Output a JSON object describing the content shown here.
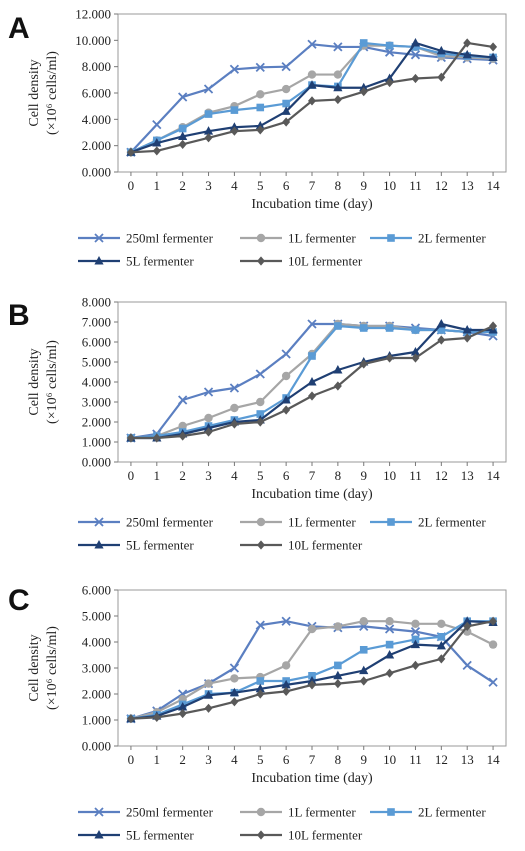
{
  "chart_data": [
    {
      "type": "line",
      "panel_label": "A",
      "xlabel": "Incubation time (day)",
      "ylabel_line1": "Cell density",
      "ylabel_line2": "(×10⁶ cells/ml)",
      "x": [
        0,
        1,
        2,
        3,
        4,
        5,
        6,
        7,
        8,
        9,
        10,
        11,
        12,
        13,
        14
      ],
      "ylim": [
        0,
        12
      ],
      "yticks": [
        0,
        2,
        4,
        6,
        8,
        10,
        12
      ],
      "ytick_labels": [
        "0.000",
        "2.000",
        "4.000",
        "6.000",
        "8.000",
        "10.000",
        "12.000"
      ],
      "grid": false,
      "series": [
        {
          "name": "250ml fermenter",
          "color": "#5b7fc1",
          "marker": "x",
          "values": [
            1.5,
            3.6,
            5.7,
            6.3,
            7.8,
            7.95,
            8.0,
            9.7,
            9.5,
            9.5,
            9.1,
            8.9,
            8.7,
            8.6,
            8.5
          ]
        },
        {
          "name": "1L fermenter",
          "color": "#a6a6a6",
          "marker": "circle",
          "values": [
            1.5,
            2.4,
            3.4,
            4.5,
            5.0,
            5.9,
            6.3,
            7.4,
            7.4,
            9.6,
            9.6,
            9.5,
            8.8,
            8.7,
            8.6
          ]
        },
        {
          "name": "2L fermenter",
          "color": "#5a9bd5",
          "marker": "square",
          "values": [
            1.5,
            2.4,
            3.3,
            4.4,
            4.7,
            4.9,
            5.2,
            6.6,
            6.5,
            9.8,
            9.6,
            9.5,
            9.0,
            8.8,
            8.7
          ]
        },
        {
          "name": "5L fermenter",
          "color": "#1f3f73",
          "marker": "triangle",
          "values": [
            1.5,
            2.2,
            2.7,
            3.1,
            3.4,
            3.5,
            4.6,
            6.6,
            6.4,
            6.4,
            7.1,
            9.8,
            9.2,
            8.9,
            8.7
          ]
        },
        {
          "name": "10L fermenter",
          "color": "#595959",
          "marker": "diamond",
          "values": [
            1.5,
            1.6,
            2.1,
            2.6,
            3.1,
            3.2,
            3.8,
            5.4,
            5.5,
            6.1,
            6.8,
            7.1,
            7.2,
            9.8,
            9.5
          ]
        }
      ]
    },
    {
      "type": "line",
      "panel_label": "B",
      "xlabel": "Incubation time (day)",
      "ylabel_line1": "Cell density",
      "ylabel_line2": "(×10⁶ cells/ml)",
      "x": [
        0,
        1,
        2,
        3,
        4,
        5,
        6,
        7,
        8,
        9,
        10,
        11,
        12,
        13,
        14
      ],
      "ylim": [
        0,
        8
      ],
      "yticks": [
        0,
        1,
        2,
        3,
        4,
        5,
        6,
        7,
        8
      ],
      "ytick_labels": [
        "0.000",
        "1.000",
        "2.000",
        "3.000",
        "4.000",
        "5.000",
        "6.000",
        "7.000",
        "8.000"
      ],
      "grid": false,
      "series": [
        {
          "name": "250ml fermenter",
          "color": "#5b7fc1",
          "marker": "x",
          "values": [
            1.2,
            1.4,
            3.1,
            3.5,
            3.7,
            4.4,
            5.4,
            6.9,
            6.9,
            6.8,
            6.8,
            6.7,
            6.6,
            6.5,
            6.3
          ]
        },
        {
          "name": "1L fermenter",
          "color": "#a6a6a6",
          "marker": "circle",
          "values": [
            1.2,
            1.3,
            1.8,
            2.2,
            2.7,
            3.0,
            4.3,
            5.4,
            6.9,
            6.8,
            6.8,
            6.6,
            6.6,
            6.5,
            6.5
          ]
        },
        {
          "name": "2L fermenter",
          "color": "#5a9bd5",
          "marker": "square",
          "values": [
            1.2,
            1.3,
            1.5,
            1.8,
            2.1,
            2.4,
            3.2,
            5.3,
            6.8,
            6.7,
            6.7,
            6.6,
            6.6,
            6.5,
            6.5
          ]
        },
        {
          "name": "5L fermenter",
          "color": "#1f3f73",
          "marker": "triangle",
          "values": [
            1.2,
            1.2,
            1.4,
            1.7,
            2.0,
            2.1,
            3.1,
            4.0,
            4.6,
            5.0,
            5.3,
            5.5,
            6.9,
            6.6,
            6.6
          ]
        },
        {
          "name": "10L fermenter",
          "color": "#595959",
          "marker": "diamond",
          "values": [
            1.2,
            1.2,
            1.3,
            1.5,
            1.9,
            2.0,
            2.6,
            3.3,
            3.8,
            4.9,
            5.2,
            5.2,
            6.1,
            6.2,
            6.8
          ]
        }
      ]
    },
    {
      "type": "line",
      "panel_label": "C",
      "xlabel": "Incubation time (day)",
      "ylabel_line1": "Cell density",
      "ylabel_line2": "(×10⁶ cells/ml)",
      "x": [
        0,
        1,
        2,
        3,
        4,
        5,
        6,
        7,
        8,
        9,
        10,
        11,
        12,
        13,
        14
      ],
      "ylim": [
        0,
        6
      ],
      "yticks": [
        0,
        1,
        2,
        3,
        4,
        5,
        6
      ],
      "ytick_labels": [
        "0.000",
        "1.000",
        "2.000",
        "3.000",
        "4.000",
        "5.000",
        "6.000"
      ],
      "grid": false,
      "series": [
        {
          "name": "250ml fermenter",
          "color": "#5b7fc1",
          "marker": "x",
          "values": [
            1.05,
            1.35,
            2.0,
            2.4,
            3.0,
            4.65,
            4.8,
            4.6,
            4.55,
            4.6,
            4.5,
            4.4,
            4.2,
            3.1,
            2.45
          ]
        },
        {
          "name": "1L fermenter",
          "color": "#a6a6a6",
          "marker": "circle",
          "values": [
            1.05,
            1.3,
            1.8,
            2.4,
            2.6,
            2.65,
            3.1,
            4.5,
            4.6,
            4.8,
            4.8,
            4.7,
            4.7,
            4.4,
            3.9
          ]
        },
        {
          "name": "2L fermenter",
          "color": "#5a9bd5",
          "marker": "square",
          "values": [
            1.05,
            1.2,
            1.6,
            2.0,
            2.05,
            2.5,
            2.5,
            2.7,
            3.1,
            3.7,
            3.9,
            4.1,
            4.2,
            4.8,
            4.8
          ]
        },
        {
          "name": "5L fermenter",
          "color": "#1f3f73",
          "marker": "triangle",
          "values": [
            1.05,
            1.15,
            1.5,
            1.95,
            2.05,
            2.2,
            2.35,
            2.5,
            2.7,
            2.9,
            3.5,
            3.9,
            3.85,
            4.8,
            4.75
          ]
        },
        {
          "name": "10L fermenter",
          "color": "#595959",
          "marker": "diamond",
          "values": [
            1.05,
            1.1,
            1.25,
            1.45,
            1.7,
            2.0,
            2.1,
            2.35,
            2.4,
            2.5,
            2.8,
            3.1,
            3.35,
            4.6,
            4.8
          ]
        }
      ]
    }
  ]
}
